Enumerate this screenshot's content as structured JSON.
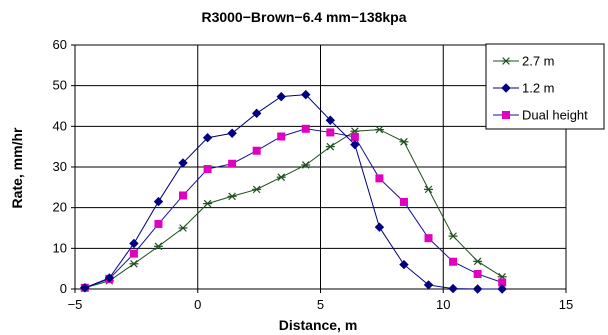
{
  "chart_data": {
    "type": "line",
    "title": "R3000−Brown−6.4 mm−138kpa",
    "xlabel": "Distance, m",
    "ylabel": "Rate, mm/hr",
    "xlim": [
      -5,
      15
    ],
    "ylim": [
      0,
      60
    ],
    "xticks": [
      -5,
      0,
      5,
      10,
      15
    ],
    "yticks": [
      0,
      10,
      20,
      30,
      40,
      50,
      60
    ],
    "xtick_labels": [
      "−5",
      "0",
      "5",
      "10",
      "15"
    ],
    "ytick_labels": [
      "0",
      "10",
      "20",
      "30",
      "40",
      "50",
      "60"
    ],
    "grid": "major gridlines on both axes",
    "legend_position": "top-right",
    "series": [
      {
        "name": "2.7 m",
        "color": "#1f4f1f",
        "marker": "asterisk",
        "x": [
          -4.6,
          -3.6,
          -2.6,
          -1.6,
          -0.6,
          0.4,
          1.4,
          2.4,
          3.4,
          4.4,
          5.4,
          6.4,
          7.4,
          8.4,
          9.4,
          10.4,
          11.4,
          12.4
        ],
        "y": [
          0.3,
          2.0,
          6.2,
          10.5,
          15.0,
          21.0,
          22.8,
          24.5,
          27.5,
          30.5,
          35.0,
          38.8,
          39.2,
          36.2,
          24.5,
          13.0,
          6.8,
          3.0
        ]
      },
      {
        "name": "1.2 m",
        "color": "#000080",
        "marker": "diamond",
        "x": [
          -4.6,
          -3.6,
          -2.6,
          -1.6,
          -0.6,
          0.4,
          1.4,
          2.4,
          3.4,
          4.4,
          5.4,
          6.4,
          7.4,
          8.4,
          9.4,
          10.4,
          11.4,
          12.4
        ],
        "y": [
          0.3,
          2.7,
          11.2,
          21.5,
          31.0,
          37.2,
          38.3,
          43.2,
          47.3,
          47.8,
          41.5,
          35.5,
          15.2,
          6.0,
          1.0,
          0.1,
          0.0,
          0.0
        ]
      },
      {
        "name": "Dual height",
        "color": "#1010a0",
        "marker_color": "#e000c0",
        "marker": "square",
        "x": [
          -4.6,
          -3.6,
          -2.6,
          -1.6,
          -0.6,
          0.4,
          1.4,
          2.4,
          3.4,
          4.4,
          5.4,
          6.4,
          7.4,
          8.4,
          9.4,
          10.4,
          11.4,
          12.4
        ],
        "y": [
          0.3,
          2.5,
          8.7,
          16.0,
          23.0,
          29.5,
          30.8,
          34.0,
          37.5,
          39.4,
          38.5,
          37.4,
          27.2,
          21.4,
          12.5,
          6.7,
          3.7,
          1.6
        ]
      }
    ]
  }
}
